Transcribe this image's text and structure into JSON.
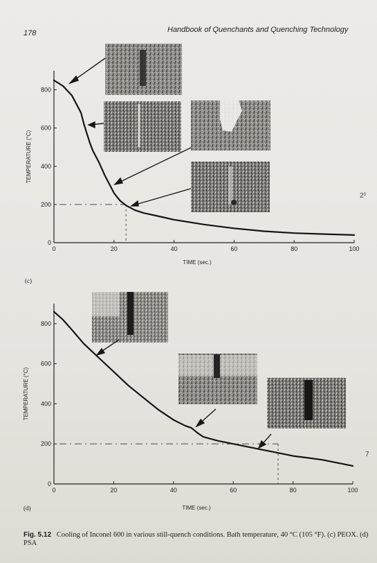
{
  "page": {
    "number": "178",
    "running_head": "Handbook of Quenchants and Quenching Technology",
    "margin_notes": [
      "2³",
      "7"
    ]
  },
  "figure": {
    "caption_lead": "Fig. 5.12",
    "caption_text": "Cooling of Inconel 600 in various still-quench conditions. Bath temperature, 40 °C (105 °F). (c) PEOX. (d) PSA",
    "panels": [
      {
        "label": "(c)",
        "xlabel": "TIME (sec.)",
        "ylabel": "TEMPERATURE (°C)"
      },
      {
        "label": "(d)",
        "xlabel": "TIME (sec.)",
        "ylabel": "TEMPERATURE (°C)"
      }
    ]
  },
  "chart_data": [
    {
      "type": "line",
      "title": "",
      "xlabel": "TIME (sec.)",
      "ylabel": "TEMPERATURE (°C)",
      "xlim": [
        0,
        100
      ],
      "ylim": [
        0,
        900
      ],
      "xticks": [
        0,
        20,
        40,
        60,
        80,
        100
      ],
      "yticks": [
        0,
        200,
        400,
        600,
        800
      ],
      "series": [
        {
          "x": [
            0,
            3,
            6,
            9,
            10,
            11,
            12,
            13,
            15,
            17,
            19,
            20,
            22,
            24,
            27,
            30,
            35,
            40,
            50,
            60,
            70,
            80,
            90,
            100
          ],
          "y": [
            850,
            820,
            770,
            680,
            620,
            570,
            520,
            480,
            420,
            350,
            290,
            260,
            220,
            195,
            170,
            155,
            138,
            120,
            95,
            75,
            60,
            50,
            45,
            40
          ]
        }
      ],
      "reference_line": {
        "y": 200,
        "x_end": 24
      }
    },
    {
      "type": "line",
      "title": "",
      "xlabel": "TIME (sec.)",
      "ylabel": "TEMPERATURE (°C)",
      "xlim": [
        0,
        100
      ],
      "ylim": [
        0,
        900
      ],
      "xticks": [
        0,
        20,
        40,
        60,
        80,
        100
      ],
      "yticks": [
        0,
        200,
        400,
        600,
        800
      ],
      "series": [
        {
          "x": [
            0,
            3,
            6,
            10,
            15,
            20,
            25,
            30,
            35,
            40,
            44,
            46,
            48,
            50,
            55,
            60,
            65,
            70,
            75,
            80,
            85,
            90,
            95,
            100
          ],
          "y": [
            860,
            820,
            770,
            700,
            630,
            560,
            490,
            430,
            370,
            320,
            290,
            280,
            255,
            235,
            215,
            200,
            185,
            170,
            155,
            140,
            130,
            120,
            105,
            90
          ]
        }
      ],
      "reference_line": {
        "y": 200,
        "x_end": 75
      }
    }
  ]
}
